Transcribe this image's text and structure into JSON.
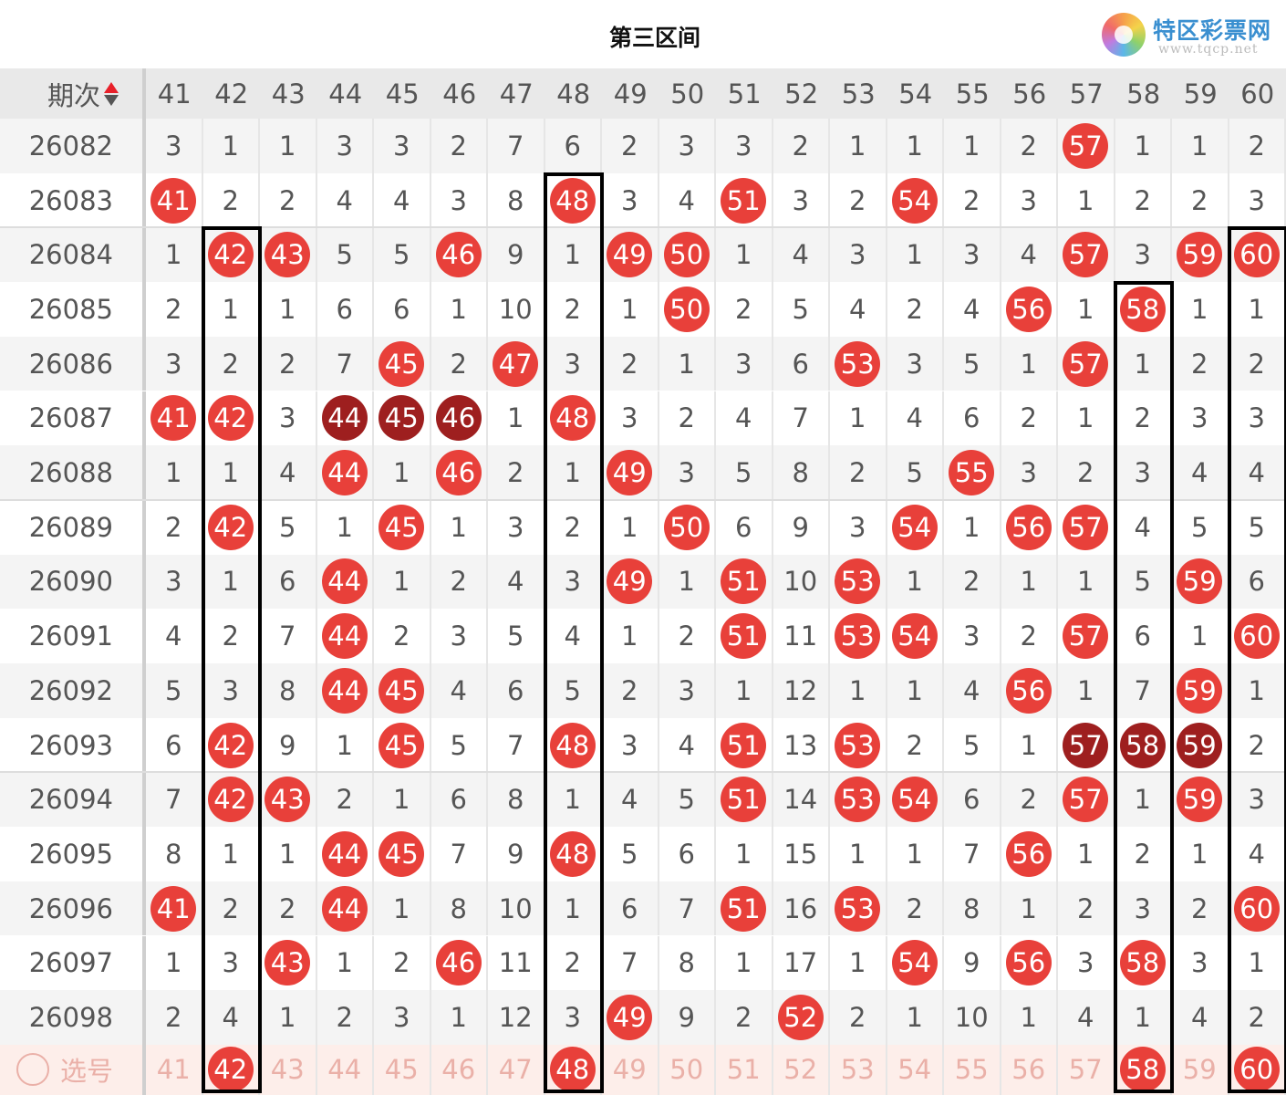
{
  "header": {
    "title": "第三区间"
  },
  "logo": {
    "name": "特区彩票网",
    "url": "www.tqcp.net"
  },
  "colors": {
    "hit": "#e8403a",
    "repeat_hit": "#9e1f1f",
    "box": "#000000",
    "select_row": "#fdeeea"
  },
  "table": {
    "issue_header": "期次",
    "sort_icon": "sort-up-down-icon",
    "columns": [
      "41",
      "42",
      "43",
      "44",
      "45",
      "46",
      "47",
      "48",
      "49",
      "50",
      "51",
      "52",
      "53",
      "54",
      "55",
      "56",
      "57",
      "58",
      "59",
      "60"
    ],
    "legend_hits": "0 = miss count, 1 = hit ball, 2 = dark hit ball",
    "rows": [
      {
        "issue": "26082",
        "cells": [
          "3",
          "1",
          "1",
          "3",
          "3",
          "2",
          "7",
          "6",
          "2",
          "3",
          "3",
          "2",
          "1",
          "1",
          "1",
          "2",
          "57",
          "1",
          "1",
          "2"
        ],
        "hits": [
          0,
          0,
          0,
          0,
          0,
          0,
          0,
          0,
          0,
          0,
          0,
          0,
          0,
          0,
          0,
          0,
          1,
          0,
          0,
          0
        ]
      },
      {
        "issue": "26083",
        "cells": [
          "41",
          "2",
          "2",
          "4",
          "4",
          "3",
          "8",
          "48",
          "3",
          "4",
          "51",
          "3",
          "2",
          "54",
          "2",
          "3",
          "1",
          "2",
          "2",
          "3"
        ],
        "hits": [
          1,
          0,
          0,
          0,
          0,
          0,
          0,
          1,
          0,
          0,
          1,
          0,
          0,
          1,
          0,
          0,
          0,
          0,
          0,
          0
        ]
      },
      {
        "issue": "26084",
        "cells": [
          "1",
          "42",
          "43",
          "5",
          "5",
          "46",
          "9",
          "1",
          "49",
          "50",
          "1",
          "4",
          "3",
          "1",
          "3",
          "4",
          "57",
          "3",
          "59",
          "60"
        ],
        "hits": [
          0,
          1,
          1,
          0,
          0,
          1,
          0,
          0,
          1,
          1,
          0,
          0,
          0,
          0,
          0,
          0,
          1,
          0,
          1,
          1
        ]
      },
      {
        "issue": "26085",
        "cells": [
          "2",
          "1",
          "1",
          "6",
          "6",
          "1",
          "10",
          "2",
          "1",
          "50",
          "2",
          "5",
          "4",
          "2",
          "4",
          "56",
          "1",
          "58",
          "1",
          "1"
        ],
        "hits": [
          0,
          0,
          0,
          0,
          0,
          0,
          0,
          0,
          0,
          1,
          0,
          0,
          0,
          0,
          0,
          1,
          0,
          1,
          0,
          0
        ]
      },
      {
        "issue": "26086",
        "cells": [
          "3",
          "2",
          "2",
          "7",
          "45",
          "2",
          "47",
          "3",
          "2",
          "1",
          "3",
          "6",
          "53",
          "3",
          "5",
          "1",
          "57",
          "1",
          "2",
          "2"
        ],
        "hits": [
          0,
          0,
          0,
          0,
          1,
          0,
          1,
          0,
          0,
          0,
          0,
          0,
          1,
          0,
          0,
          0,
          1,
          0,
          0,
          0
        ]
      },
      {
        "issue": "26087",
        "cells": [
          "41",
          "42",
          "3",
          "44",
          "45",
          "46",
          "1",
          "48",
          "3",
          "2",
          "4",
          "7",
          "1",
          "4",
          "6",
          "2",
          "1",
          "2",
          "3",
          "3"
        ],
        "hits": [
          1,
          1,
          0,
          2,
          2,
          2,
          0,
          1,
          0,
          0,
          0,
          0,
          0,
          0,
          0,
          0,
          0,
          0,
          0,
          0
        ]
      },
      {
        "issue": "26088",
        "cells": [
          "1",
          "1",
          "4",
          "44",
          "1",
          "46",
          "2",
          "1",
          "49",
          "3",
          "5",
          "8",
          "2",
          "5",
          "55",
          "3",
          "2",
          "3",
          "4",
          "4"
        ],
        "hits": [
          0,
          0,
          0,
          1,
          0,
          1,
          0,
          0,
          1,
          0,
          0,
          0,
          0,
          0,
          1,
          0,
          0,
          0,
          0,
          0
        ]
      },
      {
        "issue": "26089",
        "cells": [
          "2",
          "42",
          "5",
          "1",
          "45",
          "1",
          "3",
          "2",
          "1",
          "50",
          "6",
          "9",
          "3",
          "54",
          "1",
          "56",
          "57",
          "4",
          "5",
          "5"
        ],
        "hits": [
          0,
          1,
          0,
          0,
          1,
          0,
          0,
          0,
          0,
          1,
          0,
          0,
          0,
          1,
          0,
          1,
          1,
          0,
          0,
          0
        ]
      },
      {
        "issue": "26090",
        "cells": [
          "3",
          "1",
          "6",
          "44",
          "1",
          "2",
          "4",
          "3",
          "49",
          "1",
          "51",
          "10",
          "53",
          "1",
          "2",
          "1",
          "1",
          "5",
          "59",
          "6"
        ],
        "hits": [
          0,
          0,
          0,
          1,
          0,
          0,
          0,
          0,
          1,
          0,
          1,
          0,
          1,
          0,
          0,
          0,
          0,
          0,
          1,
          0
        ]
      },
      {
        "issue": "26091",
        "cells": [
          "4",
          "2",
          "7",
          "44",
          "2",
          "3",
          "5",
          "4",
          "1",
          "2",
          "51",
          "11",
          "53",
          "54",
          "3",
          "2",
          "57",
          "6",
          "1",
          "60"
        ],
        "hits": [
          0,
          0,
          0,
          1,
          0,
          0,
          0,
          0,
          0,
          0,
          1,
          0,
          1,
          1,
          0,
          0,
          1,
          0,
          0,
          1
        ]
      },
      {
        "issue": "26092",
        "cells": [
          "5",
          "3",
          "8",
          "44",
          "45",
          "4",
          "6",
          "5",
          "2",
          "3",
          "1",
          "12",
          "1",
          "1",
          "4",
          "56",
          "1",
          "7",
          "59",
          "1"
        ],
        "hits": [
          0,
          0,
          0,
          1,
          1,
          0,
          0,
          0,
          0,
          0,
          0,
          0,
          0,
          0,
          0,
          1,
          0,
          0,
          1,
          0
        ]
      },
      {
        "issue": "26093",
        "cells": [
          "6",
          "42",
          "9",
          "1",
          "45",
          "5",
          "7",
          "48",
          "3",
          "4",
          "51",
          "13",
          "53",
          "2",
          "5",
          "1",
          "57",
          "58",
          "59",
          "2"
        ],
        "hits": [
          0,
          1,
          0,
          0,
          1,
          0,
          0,
          1,
          0,
          0,
          1,
          0,
          1,
          0,
          0,
          0,
          2,
          2,
          2,
          0
        ]
      },
      {
        "issue": "26094",
        "cells": [
          "7",
          "42",
          "43",
          "2",
          "1",
          "6",
          "8",
          "1",
          "4",
          "5",
          "51",
          "14",
          "53",
          "54",
          "6",
          "2",
          "57",
          "1",
          "59",
          "3"
        ],
        "hits": [
          0,
          1,
          1,
          0,
          0,
          0,
          0,
          0,
          0,
          0,
          1,
          0,
          1,
          1,
          0,
          0,
          1,
          0,
          1,
          0
        ]
      },
      {
        "issue": "26095",
        "cells": [
          "8",
          "1",
          "1",
          "44",
          "45",
          "7",
          "9",
          "48",
          "5",
          "6",
          "1",
          "15",
          "1",
          "1",
          "7",
          "56",
          "1",
          "2",
          "1",
          "4"
        ],
        "hits": [
          0,
          0,
          0,
          1,
          1,
          0,
          0,
          1,
          0,
          0,
          0,
          0,
          0,
          0,
          0,
          1,
          0,
          0,
          0,
          0
        ]
      },
      {
        "issue": "26096",
        "cells": [
          "41",
          "2",
          "2",
          "44",
          "1",
          "8",
          "10",
          "1",
          "6",
          "7",
          "51",
          "16",
          "53",
          "2",
          "8",
          "1",
          "2",
          "3",
          "2",
          "60"
        ],
        "hits": [
          1,
          0,
          0,
          1,
          0,
          0,
          0,
          0,
          0,
          0,
          1,
          0,
          1,
          0,
          0,
          0,
          0,
          0,
          0,
          1
        ]
      },
      {
        "issue": "26097",
        "cells": [
          "1",
          "3",
          "43",
          "1",
          "2",
          "46",
          "11",
          "2",
          "7",
          "8",
          "1",
          "17",
          "1",
          "54",
          "9",
          "56",
          "3",
          "58",
          "3",
          "1"
        ],
        "hits": [
          0,
          0,
          1,
          0,
          0,
          1,
          0,
          0,
          0,
          0,
          0,
          0,
          0,
          1,
          0,
          1,
          0,
          1,
          0,
          0
        ]
      },
      {
        "issue": "26098",
        "cells": [
          "2",
          "4",
          "1",
          "2",
          "3",
          "1",
          "12",
          "3",
          "49",
          "9",
          "2",
          "52",
          "2",
          "1",
          "10",
          "1",
          "4",
          "1",
          "4",
          "2"
        ],
        "hits": [
          0,
          0,
          0,
          0,
          0,
          0,
          0,
          0,
          1,
          0,
          0,
          1,
          0,
          0,
          0,
          0,
          0,
          0,
          0,
          0
        ]
      }
    ],
    "select_row": {
      "label": "选号",
      "selected": [
        "42",
        "48",
        "58",
        "60"
      ]
    },
    "boxed_columns": [
      {
        "column": "42",
        "from_issue": "26084"
      },
      {
        "column": "48",
        "from_issue": "26083"
      },
      {
        "column": "58",
        "from_issue": "26085"
      },
      {
        "column": "60",
        "from_issue": "26084"
      }
    ]
  }
}
